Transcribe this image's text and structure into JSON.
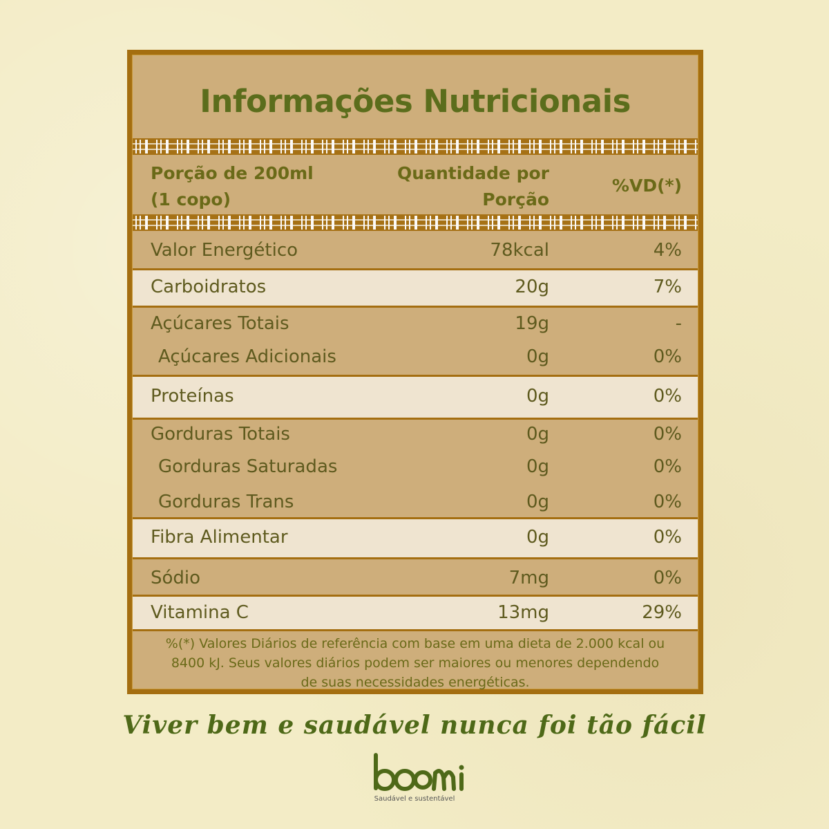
{
  "title": "Informações Nutricionais",
  "header": {
    "portion_line1": "Porção de 200ml",
    "portion_line2": "(1 copo)",
    "qty_line1": "Quantidade por",
    "qty_line2": "Porção",
    "vd": "%VD(*)"
  },
  "rows": [
    {
      "name": "Valor Energético",
      "qty": "78kcal",
      "vd": "4%"
    },
    {
      "name": "Carboidratos",
      "qty": "20g",
      "vd": "7%"
    },
    {
      "name": "Açúcares Totais",
      "qty": "19g",
      "vd": "-"
    },
    {
      "name": "Açúcares Adicionais",
      "qty": "0g",
      "vd": "0%"
    },
    {
      "name": "Proteínas",
      "qty": "0g",
      "vd": "0%"
    },
    {
      "name": "Gorduras Totais",
      "qty": "0g",
      "vd": "0%"
    },
    {
      "name": "Gorduras Saturadas",
      "qty": "0g",
      "vd": "0%"
    },
    {
      "name": "Gorduras Trans",
      "qty": "0g",
      "vd": "0%"
    },
    {
      "name": "Fibra Alimentar",
      "qty": "0g",
      "vd": "0%"
    },
    {
      "name": "Sódio",
      "qty": "7mg",
      "vd": "0%"
    },
    {
      "name": "Vitamina C",
      "qty": "13mg",
      "vd": "29%"
    }
  ],
  "footnote": {
    "line1": "%(*) Valores Diários de referência com base em uma dieta de 2.000 kcal ou",
    "line2": "8400 kJ. Seus valores diários podem ser maiores ou menores dependendo",
    "line3": "de suas necessidades energéticas."
  },
  "tagline": "Viver bem e saudável nunca foi tão fácil",
  "brand": {
    "name": "boomi",
    "slogan": "Saudável e sustentável"
  },
  "colors": {
    "background": "#f3ecc6",
    "panel": "#ceae7b",
    "border": "#a46e10",
    "light_row": "#efe4d0",
    "title_green": "#5b6d1c"
  }
}
